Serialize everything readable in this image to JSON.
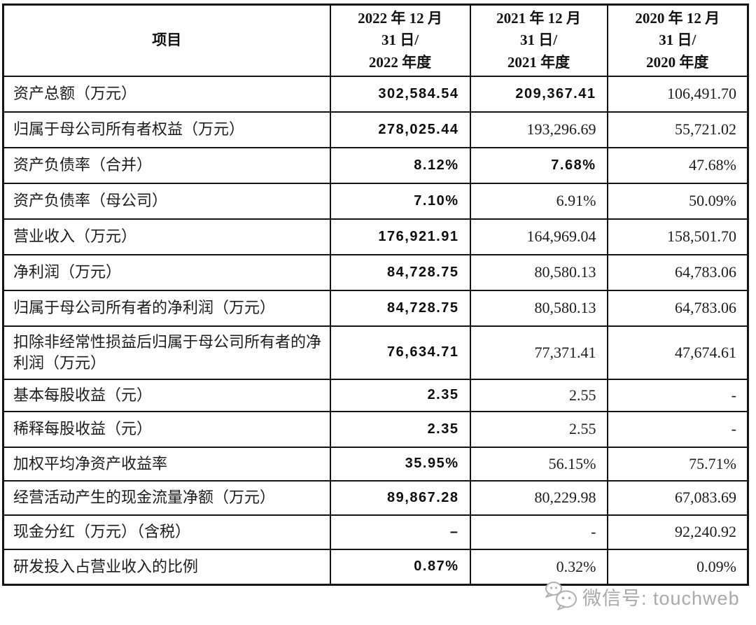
{
  "table": {
    "header": {
      "item_label": "项目",
      "periods": [
        {
          "lines": [
            "2022 年 12 月",
            "31 日/",
            "2022 年度"
          ]
        },
        {
          "lines": [
            "2021 年 12 月",
            "31 日/",
            "2021 年度"
          ]
        },
        {
          "lines": [
            "2020 年 12 月",
            "31 日/",
            "2020 年度"
          ]
        }
      ]
    },
    "rows": [
      {
        "label": "资产总额（万元）",
        "values": [
          {
            "text": "302,584.54",
            "bold": true
          },
          {
            "text": "209,367.41",
            "bold": true
          },
          {
            "text": "106,491.70",
            "bold": false
          }
        ]
      },
      {
        "label": "归属于母公司所有者权益（万元）",
        "values": [
          {
            "text": "278,025.44",
            "bold": true
          },
          {
            "text": "193,296.69",
            "bold": false
          },
          {
            "text": "55,721.02",
            "bold": false
          }
        ]
      },
      {
        "label": "资产负债率（合并）",
        "values": [
          {
            "text": "8.12%",
            "bold": true
          },
          {
            "text": "7.68%",
            "bold": true
          },
          {
            "text": "47.68%",
            "bold": false
          }
        ]
      },
      {
        "label": "资产负债率（母公司）",
        "values": [
          {
            "text": "7.10%",
            "bold": true
          },
          {
            "text": "6.91%",
            "bold": false
          },
          {
            "text": "50.09%",
            "bold": false
          }
        ]
      },
      {
        "label": "营业收入（万元）",
        "values": [
          {
            "text": "176,921.91",
            "bold": true
          },
          {
            "text": "164,969.04",
            "bold": false
          },
          {
            "text": "158,501.70",
            "bold": false
          }
        ]
      },
      {
        "label": "净利润（万元）",
        "values": [
          {
            "text": "84,728.75",
            "bold": true
          },
          {
            "text": "80,580.13",
            "bold": false
          },
          {
            "text": "64,783.06",
            "bold": false
          }
        ]
      },
      {
        "label": "归属于母公司所有者的净利润（万元）",
        "values": [
          {
            "text": "84,728.75",
            "bold": true
          },
          {
            "text": "80,580.13",
            "bold": false
          },
          {
            "text": "64,783.06",
            "bold": false
          }
        ]
      },
      {
        "label": "扣除非经常性损益后归属于母公司所有者的净利润（万元）",
        "values": [
          {
            "text": "76,634.71",
            "bold": true
          },
          {
            "text": "77,371.41",
            "bold": false
          },
          {
            "text": "47,674.61",
            "bold": false
          }
        ]
      },
      {
        "label": "基本每股收益（元）",
        "values": [
          {
            "text": "2.35",
            "bold": true
          },
          {
            "text": "2.55",
            "bold": false
          },
          {
            "text": "-",
            "bold": false
          }
        ]
      },
      {
        "label": "稀释每股收益（元）",
        "values": [
          {
            "text": "2.35",
            "bold": true
          },
          {
            "text": "2.55",
            "bold": false
          },
          {
            "text": "-",
            "bold": false
          }
        ]
      },
      {
        "label": "加权平均净资产收益率",
        "values": [
          {
            "text": "35.95%",
            "bold": true
          },
          {
            "text": "56.15%",
            "bold": false
          },
          {
            "text": "75.71%",
            "bold": false
          }
        ]
      },
      {
        "label": "经营活动产生的现金流量净额（万元）",
        "values": [
          {
            "text": "89,867.28",
            "bold": true
          },
          {
            "text": "80,229.98",
            "bold": false
          },
          {
            "text": "67,083.69",
            "bold": false
          }
        ]
      },
      {
        "label": "现金分红（万元）（含税）",
        "values": [
          {
            "text": "–",
            "bold": true
          },
          {
            "text": "-",
            "bold": false
          },
          {
            "text": "92,240.92",
            "bold": false
          }
        ]
      },
      {
        "label": "研发投入占营业收入的比例",
        "values": [
          {
            "text": "0.87%",
            "bold": true
          },
          {
            "text": "0.32%",
            "bold": false
          },
          {
            "text": "0.09%",
            "bold": false
          }
        ]
      }
    ]
  },
  "watermark": {
    "icon": "wechat-icon",
    "text": "微信号: touchweb"
  },
  "colors": {
    "border": "#141414",
    "text": "#1c1c1c",
    "watermark_gray": "#a9a9a9",
    "background": "#ffffff"
  }
}
